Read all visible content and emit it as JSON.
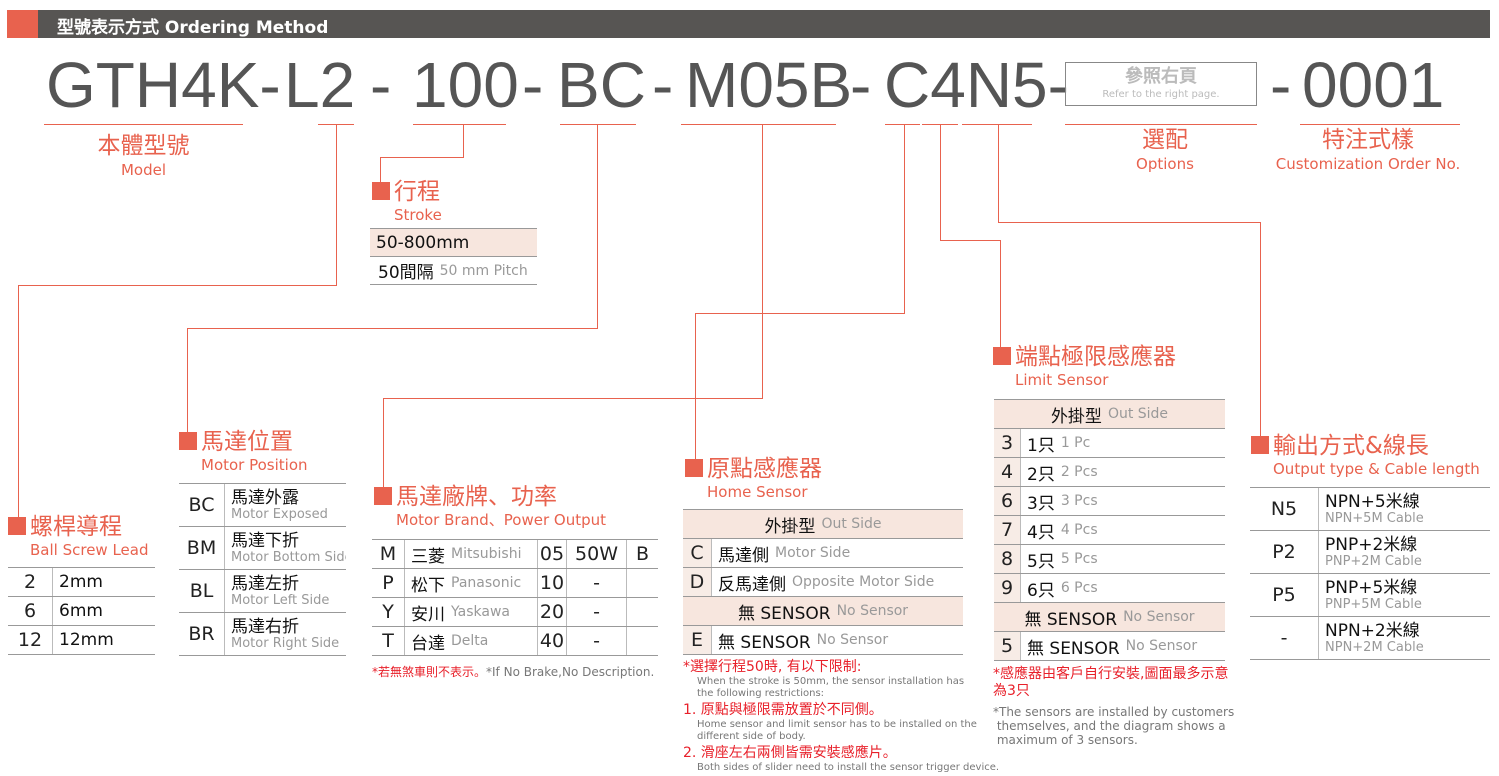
{
  "header": {
    "title": "型號表示方式 Ordering Method"
  },
  "code": {
    "model": "GTH4K-",
    "lead": "L2",
    "d1": "-",
    "stroke": "100",
    "d2": "-",
    "position": "BC",
    "d3": "-",
    "brand": "M05B",
    "d4": "-",
    "sensor": "C4N5-",
    "options_zh": "參照右頁",
    "options_en": "Refer to the right page.",
    "d5": "-",
    "custom": "0001"
  },
  "labels": {
    "model_zh": "本體型號",
    "model_en": "Model",
    "options_zh": "選配",
    "options_en": "Options",
    "custom_zh": "特注式樣",
    "custom_en": "Customization Order No."
  },
  "stroke": {
    "title": "行程",
    "subtitle": "Stroke",
    "rows": [
      {
        "zh": "50-800mm",
        "section": true,
        "left": true
      },
      {
        "zh": "50間隔",
        "en": "50 mm Pitch",
        "section": false,
        "plain": true
      }
    ]
  },
  "ball_screw": {
    "title": "螺桿導程",
    "subtitle": "Ball Screw Lead",
    "rows": [
      {
        "code": "2",
        "zh": "2mm"
      },
      {
        "code": "6",
        "zh": "6mm"
      },
      {
        "code": "12",
        "zh": "12mm"
      }
    ]
  },
  "motor_position": {
    "title": "馬達位置",
    "subtitle": "Motor Position",
    "rows": [
      {
        "code": "BC",
        "zh": "馬達外露",
        "en": "Motor Exposed"
      },
      {
        "code": "BM",
        "zh": "馬達下折",
        "en": "Motor Bottom Side"
      },
      {
        "code": "BL",
        "zh": "馬達左折",
        "en": "Motor Left Side"
      },
      {
        "code": "BR",
        "zh": "馬達右折",
        "en": "Motor Right Side"
      }
    ]
  },
  "motor_brand": {
    "title": "馬達廠牌、功率",
    "subtitle": "Motor Brand、Power Output",
    "rows": [
      {
        "code": "M",
        "zh": "三菱",
        "en": "Mitsubishi",
        "code2": "05",
        "power": "50W",
        "brake": "B"
      },
      {
        "code": "P",
        "zh": "松下",
        "en": "Panasonic",
        "code2": "10",
        "power": "-",
        "brake": ""
      },
      {
        "code": "Y",
        "zh": "安川",
        "en": "Yaskawa",
        "code2": "20",
        "power": "-",
        "brake": ""
      },
      {
        "code": "T",
        "zh": "台達",
        "en": "Delta",
        "code2": "40",
        "power": "-",
        "brake": ""
      }
    ],
    "note": "*若無煞車則不表示。",
    "note_en": "*If No Brake,No Description."
  },
  "home_sensor": {
    "title": "原點感應器",
    "subtitle": "Home Sensor",
    "rows": [
      {
        "section": true,
        "zh": "外掛型",
        "en": "Out Side"
      },
      {
        "code": "C",
        "zh": "馬達側",
        "en": "Motor Side"
      },
      {
        "code": "D",
        "zh": "反馬達側",
        "en": "Opposite Motor Side"
      },
      {
        "section": true,
        "zh": "無 SENSOR",
        "en": "No Sensor"
      },
      {
        "code": "E",
        "zh": "無  SENSOR",
        "en": "No Sensor"
      }
    ],
    "notes": [
      {
        "red": "*選擇行程50時, 有以下限制:",
        "gray": "When the stroke is 50mm, the sensor installation has\nthe following restrictions:"
      },
      {
        "red": "1. 原點與極限需放置於不同側。",
        "gray": "Home sensor and limit sensor has to be installed on the\ndifferent side of body."
      },
      {
        "red": "2. 滑座左右兩側皆需安裝感應片。",
        "gray": "Both sides of slider need to install the sensor trigger device."
      }
    ]
  },
  "limit_sensor": {
    "title": "端點極限感應器",
    "subtitle": "Limit Sensor",
    "rows": [
      {
        "section": true,
        "zh": "外掛型",
        "en": "Out Side"
      },
      {
        "code": "3",
        "zh": "1只",
        "en": "1 Pc"
      },
      {
        "code": "4",
        "zh": "2只",
        "en": "2 Pcs"
      },
      {
        "code": "6",
        "zh": "3只",
        "en": "3 Pcs"
      },
      {
        "code": "7",
        "zh": "4只",
        "en": "4 Pcs"
      },
      {
        "code": "8",
        "zh": "5只",
        "en": "5 Pcs"
      },
      {
        "code": "9",
        "zh": "6只",
        "en": "6 Pcs"
      },
      {
        "section": true,
        "zh": "無 SENSOR",
        "en": "No Sensor"
      },
      {
        "code": "5",
        "zh": "無 SENSOR",
        "en": "No Sensor"
      }
    ],
    "note_red": "*感應器由客戶自行安裝,圖面最多示意\n為3只",
    "note_gray": "*The sensors are installed by customers\n themselves, and the diagram shows a\n maximum of 3 sensors."
  },
  "output": {
    "title": "輸出方式&線長",
    "subtitle": "Output type & Cable length",
    "rows": [
      {
        "code": "N5",
        "zh": "NPN+5米線",
        "en": "NPN+5M Cable"
      },
      {
        "code": "P2",
        "zh": "PNP+2米線",
        "en": "PNP+2M Cable"
      },
      {
        "code": "P5",
        "zh": "PNP+5米線",
        "en": "PNP+5M Cable"
      },
      {
        "code": "-",
        "zh": "NPN+2米線",
        "en": "NPN+2M Cable"
      }
    ]
  },
  "colors": {
    "accent": "#e8624e",
    "header_bg": "#575553",
    "section_bg": "#f7e6de",
    "note_red": "#e8202a"
  }
}
